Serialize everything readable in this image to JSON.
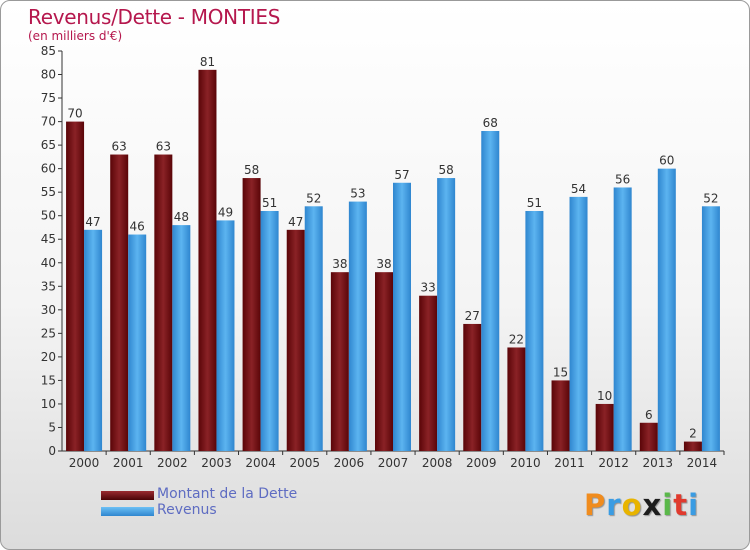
{
  "title": "Revenus/Dette - MONTIES",
  "subtitle": "(en milliers d'€)",
  "colors": {
    "debt": "#7a0f16",
    "revenue": "#3a9ce3",
    "title": "#b5174d",
    "legend_text": "#5e6cc2"
  },
  "legend": {
    "debt_label": "Montant de la Dette",
    "revenue_label": "Revenus"
  },
  "logo": {
    "text": "Proxiti"
  },
  "chart_data": {
    "type": "bar",
    "title": "Revenus/Dette - MONTIES",
    "subtitle": "(en milliers d'€)",
    "xlabel": "",
    "ylabel": "",
    "ylim": [
      0,
      85
    ],
    "yticks": [
      0,
      5,
      10,
      15,
      20,
      25,
      30,
      35,
      40,
      45,
      50,
      55,
      60,
      65,
      70,
      75,
      80,
      85
    ],
    "grid": false,
    "legend_position": "bottom-left",
    "categories": [
      "2000",
      "2001",
      "2002",
      "2003",
      "2004",
      "2005",
      "2006",
      "2007",
      "2008",
      "2009",
      "2010",
      "2011",
      "2012",
      "2013",
      "2014"
    ],
    "series": [
      {
        "name": "Montant de la Dette",
        "values": [
          70,
          63,
          63,
          81,
          58,
          47,
          38,
          38,
          33,
          27,
          22,
          15,
          10,
          6,
          2
        ]
      },
      {
        "name": "Revenus",
        "values": [
          47,
          46,
          48,
          49,
          51,
          52,
          53,
          57,
          58,
          68,
          51,
          54,
          56,
          60,
          52
        ]
      }
    ]
  }
}
